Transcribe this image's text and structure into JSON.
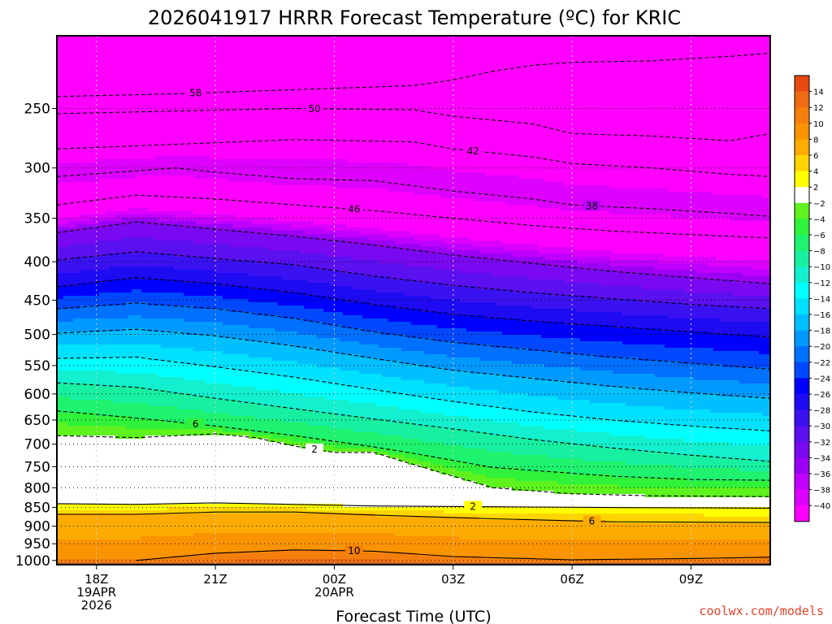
{
  "chart_data": {
    "type": "heatmap",
    "title": "2026041917 HRRR Forecast Temperature (ºC) for KRIC",
    "xlabel": "Forecast Time (UTC)",
    "ylabel": "",
    "x_ticks": [
      {
        "hour": 0,
        "label": "18Z",
        "sub": [
          "19APR",
          "2026"
        ]
      },
      {
        "hour": 3,
        "label": "21Z",
        "sub": []
      },
      {
        "hour": 6,
        "label": "00Z",
        "sub": [
          "20APR"
        ]
      },
      {
        "hour": 9,
        "label": "03Z",
        "sub": []
      },
      {
        "hour": 12,
        "label": "06Z",
        "sub": []
      },
      {
        "hour": 15,
        "label": "09Z",
        "sub": []
      }
    ],
    "x_range_hours": [
      -1,
      17
    ],
    "y_ticks": [
      250,
      300,
      350,
      400,
      450,
      500,
      550,
      600,
      650,
      700,
      750,
      800,
      850,
      900,
      950,
      1000
    ],
    "y_range_hpa": [
      200,
      1013
    ],
    "y_scale": "log",
    "dotted_levels": [
      250,
      300,
      350,
      400,
      450,
      500,
      550,
      600,
      650,
      700,
      750,
      800,
      850,
      900,
      950,
      1000
    ],
    "colorbar": {
      "ticks": [
        "14",
        "12",
        "10",
        "8",
        "6",
        "4",
        "2",
        "−2",
        "−4",
        "−6",
        "−8",
        "−10",
        "−12",
        "−14",
        "−16",
        "−18",
        "−20",
        "−22",
        "−24",
        "−26",
        "−28",
        "−30",
        "−32",
        "−34",
        "−36",
        "−38",
        "−40"
      ],
      "bands": [
        {
          "min": 14,
          "max": 16,
          "color": "#e64a0e"
        },
        {
          "min": 12,
          "max": 14,
          "color": "#ef6a12"
        },
        {
          "min": 10,
          "max": 12,
          "color": "#f57f0c"
        },
        {
          "min": 8,
          "max": 10,
          "color": "#f99400"
        },
        {
          "min": 6,
          "max": 8,
          "color": "#fcab00"
        },
        {
          "min": 4,
          "max": 6,
          "color": "#ffd400"
        },
        {
          "min": 2,
          "max": 4,
          "color": "#ffff00"
        },
        {
          "min": -2,
          "max": 2,
          "color": "#ffffff"
        },
        {
          "min": -4,
          "max": -2,
          "color": "#5ef21e"
        },
        {
          "min": -6,
          "max": -4,
          "color": "#2ff23a"
        },
        {
          "min": -8,
          "max": -6,
          "color": "#1ef26e"
        },
        {
          "min": -10,
          "max": -8,
          "color": "#17f0a0"
        },
        {
          "min": -12,
          "max": -10,
          "color": "#12f0cf"
        },
        {
          "min": -14,
          "max": -12,
          "color": "#00ffff"
        },
        {
          "min": -16,
          "max": -14,
          "color": "#00e0ff"
        },
        {
          "min": -18,
          "max": -16,
          "color": "#00bfff"
        },
        {
          "min": -20,
          "max": -18,
          "color": "#0099ff"
        },
        {
          "min": -22,
          "max": -20,
          "color": "#0070ff"
        },
        {
          "min": -24,
          "max": -22,
          "color": "#0048ff"
        },
        {
          "min": -26,
          "max": -24,
          "color": "#0000ff"
        },
        {
          "min": -28,
          "max": -26,
          "color": "#1e0bf2"
        },
        {
          "min": -30,
          "max": -28,
          "color": "#3a12f2"
        },
        {
          "min": -32,
          "max": -30,
          "color": "#5b10ef"
        },
        {
          "min": -34,
          "max": -32,
          "color": "#7a08f0"
        },
        {
          "min": -36,
          "max": -34,
          "color": "#9b00f5"
        },
        {
          "min": -38,
          "max": -36,
          "color": "#bf00ff"
        },
        {
          "min": -40,
          "max": -38,
          "color": "#de00ff"
        },
        {
          "min": -100,
          "max": -40,
          "color": "#ff00ff"
        }
      ]
    },
    "ground_color": "#a0522d",
    "isotherms": [
      {
        "value": -58,
        "label": "58",
        "line": "dashed",
        "points": [
          [
            -1,
            241
          ],
          [
            2,
            239
          ],
          [
            5,
            236
          ],
          [
            8,
            233
          ],
          [
            9,
            229
          ],
          [
            10,
            223
          ],
          [
            11,
            219
          ],
          [
            12,
            217
          ],
          [
            14,
            216
          ],
          [
            16,
            213
          ],
          [
            17,
            211
          ]
        ]
      },
      {
        "value": -50,
        "label": "50",
        "line": "dashed",
        "points": [
          [
            -1,
            254
          ],
          [
            2,
            252
          ],
          [
            5,
            250
          ],
          [
            8,
            251
          ],
          [
            9,
            256
          ],
          [
            11,
            262
          ],
          [
            12,
            270
          ],
          [
            14,
            272
          ],
          [
            16,
            276
          ],
          [
            17,
            270
          ]
        ]
      },
      {
        "value": -42,
        "label": "42",
        "line": "dashed",
        "points": [
          [
            -1,
            283
          ],
          [
            2,
            279
          ],
          [
            5,
            275
          ],
          [
            8,
            277
          ],
          [
            9,
            283
          ],
          [
            11,
            290
          ],
          [
            12,
            296
          ],
          [
            14,
            300
          ],
          [
            16,
            306
          ],
          [
            17,
            308
          ]
        ]
      },
      {
        "value": -38,
        "label": "38",
        "line": "dashed",
        "points": [
          [
            -1,
            308
          ],
          [
            2,
            300
          ],
          [
            3,
            304
          ],
          [
            5,
            310
          ],
          [
            7,
            312
          ],
          [
            9,
            322
          ],
          [
            11,
            330
          ],
          [
            12,
            336
          ],
          [
            14,
            340
          ],
          [
            16,
            345
          ],
          [
            17,
            348
          ]
        ]
      },
      {
        "value": -46,
        "label": "46",
        "line": "dashed",
        "points": [
          [
            -1,
            336
          ],
          [
            1,
            326
          ],
          [
            3,
            330
          ],
          [
            5,
            336
          ],
          [
            7,
            342
          ],
          [
            9,
            350
          ],
          [
            11,
            358
          ],
          [
            13,
            364
          ],
          [
            15,
            368
          ],
          [
            17,
            372
          ]
        ]
      },
      {
        "value": -34,
        "label": "",
        "line": "dashed",
        "points": [
          [
            -1,
            366
          ],
          [
            1,
            354
          ],
          [
            3,
            362
          ],
          [
            5,
            370
          ],
          [
            7,
            380
          ],
          [
            9,
            392
          ],
          [
            11,
            402
          ],
          [
            13,
            412
          ],
          [
            15,
            420
          ],
          [
            17,
            428
          ]
        ]
      },
      {
        "value": -30,
        "label": "",
        "line": "dashed",
        "points": [
          [
            -1,
            398
          ],
          [
            1,
            388
          ],
          [
            3,
            396
          ],
          [
            5,
            404
          ],
          [
            7,
            418
          ],
          [
            9,
            430
          ],
          [
            11,
            440
          ],
          [
            13,
            448
          ],
          [
            15,
            456
          ],
          [
            17,
            462
          ]
        ]
      },
      {
        "value": -26,
        "label": "",
        "line": "dashed",
        "points": [
          [
            -1,
            432
          ],
          [
            1,
            420
          ],
          [
            3,
            428
          ],
          [
            5,
            440
          ],
          [
            7,
            456
          ],
          [
            9,
            470
          ],
          [
            11,
            480
          ],
          [
            13,
            488
          ],
          [
            15,
            496
          ],
          [
            17,
            504
          ]
        ]
      },
      {
        "value": -22,
        "label": "",
        "line": "dashed",
        "points": [
          [
            -1,
            462
          ],
          [
            1,
            454
          ],
          [
            3,
            462
          ],
          [
            5,
            476
          ],
          [
            7,
            496
          ],
          [
            9,
            512
          ],
          [
            11,
            524
          ],
          [
            13,
            536
          ],
          [
            15,
            546
          ],
          [
            17,
            556
          ]
        ]
      },
      {
        "value": -18,
        "label": "",
        "line": "dashed",
        "points": [
          [
            -1,
            498
          ],
          [
            1,
            492
          ],
          [
            3,
            502
          ],
          [
            5,
            518
          ],
          [
            7,
            538
          ],
          [
            9,
            558
          ],
          [
            11,
            572
          ],
          [
            13,
            586
          ],
          [
            15,
            598
          ],
          [
            17,
            608
          ]
        ]
      },
      {
        "value": -14,
        "label": "",
        "line": "dashed",
        "points": [
          [
            -1,
            538
          ],
          [
            1,
            536
          ],
          [
            3,
            552
          ],
          [
            5,
            570
          ],
          [
            7,
            592
          ],
          [
            9,
            614
          ],
          [
            11,
            634
          ],
          [
            13,
            650
          ],
          [
            15,
            662
          ],
          [
            17,
            672
          ]
        ]
      },
      {
        "value": -10,
        "label": "",
        "line": "dashed",
        "points": [
          [
            -1,
            580
          ],
          [
            1,
            588
          ],
          [
            3,
            608
          ],
          [
            5,
            628
          ],
          [
            7,
            648
          ],
          [
            9,
            668
          ],
          [
            11,
            690
          ],
          [
            13,
            708
          ],
          [
            15,
            724
          ],
          [
            17,
            738
          ]
        ]
      },
      {
        "value": -6,
        "label": "6",
        "line": "dashed",
        "points": [
          [
            -1,
            632
          ],
          [
            1,
            646
          ],
          [
            3,
            662
          ],
          [
            5,
            682
          ],
          [
            7,
            706
          ],
          [
            8,
            720
          ],
          [
            10,
            752
          ],
          [
            13,
            772
          ],
          [
            15,
            780
          ],
          [
            17,
            782
          ]
        ]
      },
      {
        "value": -2,
        "label": "2",
        "line": "dashed",
        "points": [
          [
            -1,
            682
          ],
          [
            1,
            686
          ],
          [
            3,
            678
          ],
          [
            4,
            686
          ],
          [
            5,
            704
          ],
          [
            6,
            718
          ],
          [
            7,
            718
          ],
          [
            8,
            745
          ],
          [
            10,
            800
          ],
          [
            12,
            815
          ],
          [
            14,
            820
          ],
          [
            17,
            822
          ]
        ]
      },
      {
        "value": 2,
        "label": "2",
        "line": "solid",
        "points": [
          [
            -1,
            840
          ],
          [
            1,
            842
          ],
          [
            3,
            838
          ],
          [
            5,
            842
          ],
          [
            7,
            846
          ],
          [
            10,
            848
          ],
          [
            13,
            850
          ],
          [
            17,
            852
          ]
        ]
      },
      {
        "value": 6,
        "label": "6",
        "line": "solid",
        "points": [
          [
            -1,
            868
          ],
          [
            1,
            868
          ],
          [
            3,
            862
          ],
          [
            5,
            862
          ],
          [
            7,
            870
          ],
          [
            10,
            880
          ],
          [
            13,
            888
          ],
          [
            17,
            890
          ]
        ]
      },
      {
        "value": 10,
        "label": "10",
        "line": "solid",
        "points": [
          [
            1,
            1000
          ],
          [
            3,
            978
          ],
          [
            5,
            968
          ],
          [
            7,
            972
          ],
          [
            9,
            988
          ],
          [
            12,
            998
          ],
          [
            15,
            994
          ],
          [
            17,
            990
          ]
        ]
      }
    ],
    "ground_level_hpa": 1013
  },
  "credit": "coolwx.com/models"
}
